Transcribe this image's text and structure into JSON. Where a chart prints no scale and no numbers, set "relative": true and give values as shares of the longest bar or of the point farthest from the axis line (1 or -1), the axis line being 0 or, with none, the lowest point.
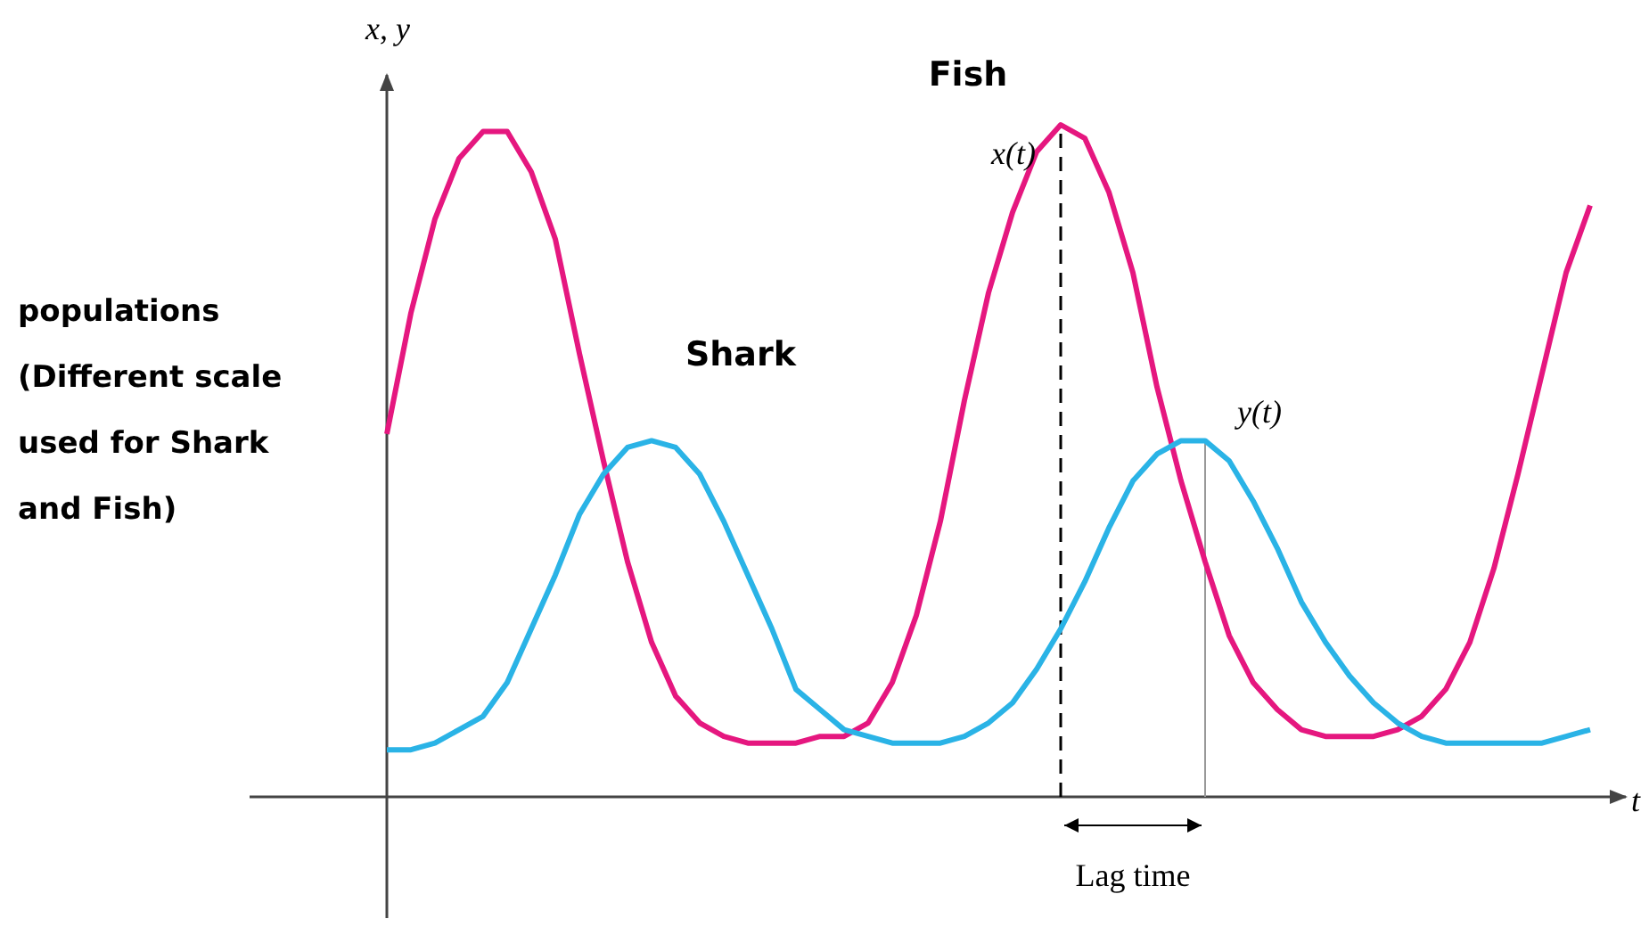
{
  "chart_data": {
    "type": "line",
    "relative": true,
    "xlabel": "t",
    "ylabel": "x, y",
    "marker": "none",
    "line_style": "solid",
    "categories": [
      null,
      null,
      null,
      null,
      null,
      null,
      null,
      null,
      null,
      null,
      null,
      null,
      null,
      null,
      null,
      null,
      null,
      null,
      null,
      null,
      null,
      null,
      null,
      null,
      null,
      null,
      null,
      null,
      null,
      null,
      null,
      null,
      null,
      null,
      null,
      null,
      null,
      null,
      null,
      null,
      null,
      null,
      null,
      null,
      null,
      null,
      null,
      null,
      null,
      null,
      null
    ],
    "series": [
      {
        "name": "Fish",
        "color": "#e5177f",
        "values": [
          0.54,
          0.72,
          0.86,
          0.95,
          0.99,
          0.99,
          0.93,
          0.83,
          0.66,
          0.5,
          0.35,
          0.23,
          0.15,
          0.11,
          0.09,
          0.08,
          0.08,
          0.08,
          0.09,
          0.09,
          0.11,
          0.17,
          0.27,
          0.41,
          0.59,
          0.75,
          0.87,
          0.96,
          1,
          0.98,
          0.9,
          0.78,
          0.61,
          0.47,
          0.35,
          0.24,
          0.17,
          0.13,
          0.1,
          0.09,
          0.09,
          0.09,
          0.1,
          0.12,
          0.16,
          0.23,
          0.34,
          0.48,
          0.63,
          0.78,
          0.88
        ]
      },
      {
        "name": "Shark",
        "color": "#2ab3e6",
        "values": [
          0.07,
          0.07,
          0.08,
          0.1,
          0.12,
          0.17,
          0.25,
          0.33,
          0.42,
          0.48,
          0.52,
          0.53,
          0.52,
          0.48,
          0.41,
          0.33,
          0.25,
          0.16,
          0.13,
          0.1,
          0.09,
          0.08,
          0.08,
          0.08,
          0.09,
          0.11,
          0.14,
          0.19,
          0.25,
          0.32,
          0.4,
          0.47,
          0.51,
          0.53,
          0.53,
          0.5,
          0.44,
          0.37,
          0.29,
          0.23,
          0.18,
          0.14,
          0.11,
          0.09,
          0.08,
          0.08,
          0.08,
          0.08,
          0.08,
          0.09,
          0.1
        ]
      }
    ],
    "annotations": [
      "x(t)",
      "y(t)",
      "Lag time",
      "populations (Different scale used for Shark and Fish)"
    ]
  }
}
